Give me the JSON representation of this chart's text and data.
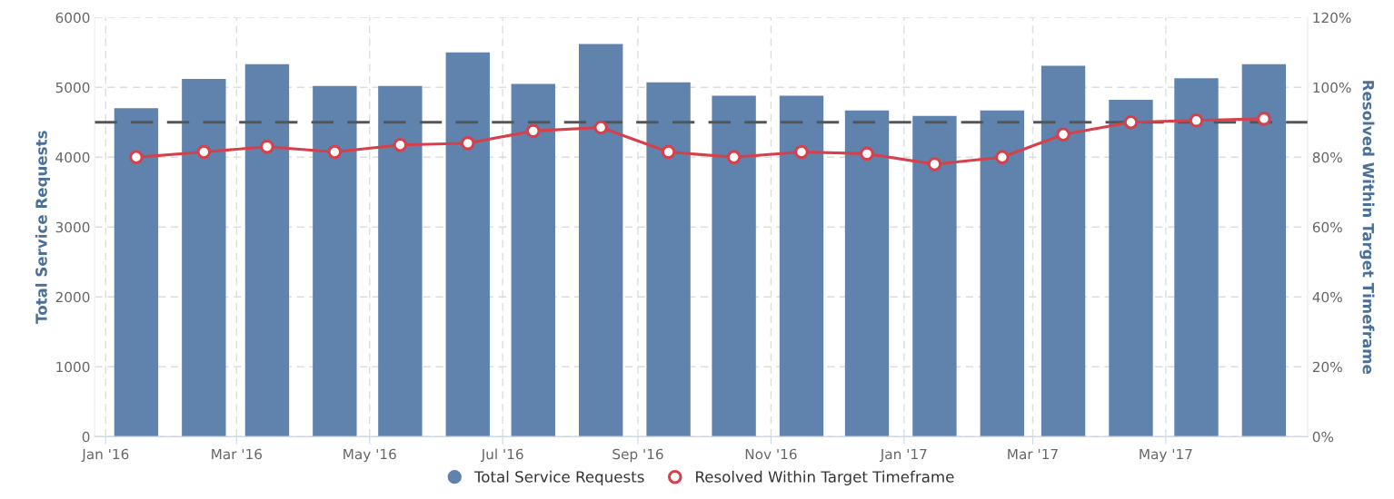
{
  "chart_data": {
    "type": "bar",
    "x": [
      "2016-01-15",
      "2016-02-15",
      "2016-03-15",
      "2016-04-15",
      "2016-05-15",
      "2016-06-15",
      "2016-07-15",
      "2016-08-15",
      "2016-09-15",
      "2016-10-15",
      "2016-11-15",
      "2016-12-15",
      "2017-01-15",
      "2017-02-15",
      "2017-03-15",
      "2017-04-15",
      "2017-05-15",
      "2017-06-15"
    ],
    "series": [
      {
        "name": "Total Service Requests",
        "color": "#6083ae",
        "values": [
          4700,
          5120,
          5330,
          5020,
          5020,
          5500,
          5050,
          5620,
          5070,
          4880,
          4880,
          4670,
          4590,
          4670,
          5310,
          4820,
          5130,
          5330
        ]
      },
      {
        "name": "Resolved Within Target Timeframe",
        "type": "line",
        "axis": "y2",
        "color": "#d6404a",
        "marker": "circle",
        "line_style": "solid",
        "values": [
          80,
          81.5,
          83,
          81.5,
          83.5,
          84,
          87.5,
          88.5,
          81.5,
          80,
          81.5,
          81,
          78,
          80,
          86.5,
          90,
          90.5,
          91
        ]
      }
    ],
    "ylabel": "Total Service Requests",
    "y2label": "Resolved Within Target Timeframe",
    "xlim": [
      "2015-12-27",
      "2017-07-05"
    ],
    "xticks": [
      {
        "value": "2016-01-01",
        "label": "Jan '16"
      },
      {
        "value": "2016-03-01",
        "label": "Mar '16"
      },
      {
        "value": "2016-05-01",
        "label": "May '16"
      },
      {
        "value": "2016-07-01",
        "label": "Jul '16"
      },
      {
        "value": "2016-09-01",
        "label": "Sep '16"
      },
      {
        "value": "2016-11-01",
        "label": "Nov '16"
      },
      {
        "value": "2017-01-01",
        "label": "Jan '17"
      },
      {
        "value": "2017-03-01",
        "label": "Mar '17"
      },
      {
        "value": "2017-05-01",
        "label": "May '17"
      }
    ],
    "ylim": [
      0,
      6000
    ],
    "yticks": [
      0,
      1000,
      2000,
      3000,
      4000,
      5000,
      6000
    ],
    "y2lim": [
      0,
      120
    ],
    "y2ticks": [
      {
        "value": 0,
        "label": "0%"
      },
      {
        "value": 20,
        "label": "20%"
      },
      {
        "value": 40,
        "label": "40%"
      },
      {
        "value": 60,
        "label": "60%"
      },
      {
        "value": 80,
        "label": "80%"
      },
      {
        "value": 100,
        "label": "100%"
      },
      {
        "value": 120,
        "label": "120%"
      }
    ],
    "ref_lines": [
      {
        "axis": "y2",
        "value": 90,
        "color": "#555555",
        "line_style": "dashed"
      }
    ],
    "grid": true,
    "legend": "bottom"
  }
}
